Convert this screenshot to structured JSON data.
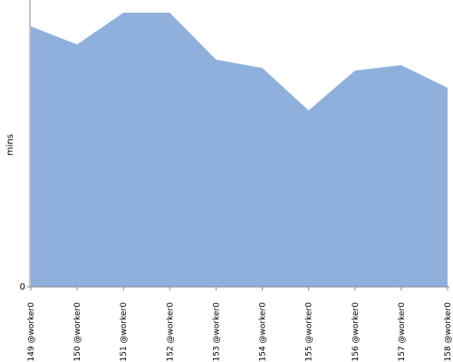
{
  "chart_data": {
    "type": "area",
    "y_label": "mins",
    "categories": [
      "#149 @worker0",
      "#150 @worker0",
      "#151 @worker0",
      "#152 @worker0",
      "#153 @worker0",
      "#154 @worker0",
      "#155 @worker0",
      "#156 @worker0",
      "#157 @worker0",
      "#158 @worker0"
    ],
    "values": [
      9.08,
      8.45,
      9.56,
      9.56,
      7.92,
      7.63,
      6.15,
      7.54,
      7.73,
      6.94
    ],
    "color": "#8fb0dc",
    "ylim": [
      0,
      10
    ],
    "yticks": [
      0
    ]
  }
}
